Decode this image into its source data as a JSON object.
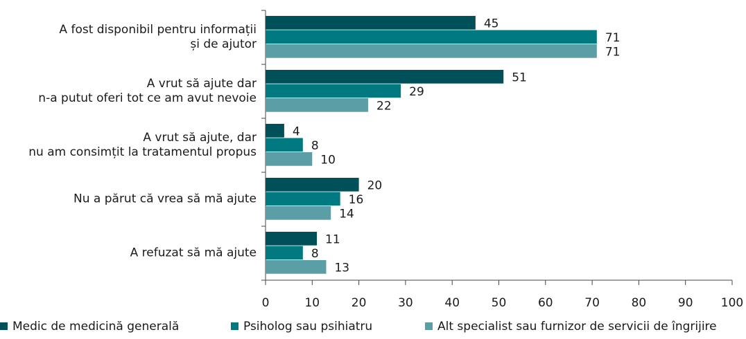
{
  "chart_data": {
    "type": "bar",
    "orientation": "horizontal",
    "categories": [
      "A fost disponibil pentru informații\nși de ajutor",
      "A vrut să ajute dar\nn-a putut oferi tot ce am avut nevoie",
      "A vrut să ajute, dar\nnu am consimțit la tratamentul propus",
      "Nu a părut că vrea să mă ajute",
      "A refuzat să mă ajute"
    ],
    "series": [
      {
        "name": "Medic de medicină generală",
        "color": "#00505a",
        "values": [
          45,
          51,
          4,
          20,
          11
        ]
      },
      {
        "name": "Psiholog sau psihiatru",
        "color": "#007a80",
        "values": [
          71,
          29,
          8,
          16,
          8
        ]
      },
      {
        "name": "Alt specialist sau furnizor de servicii de îngrijire",
        "color": "#5b9ea6",
        "values": [
          71,
          22,
          10,
          14,
          13
        ]
      }
    ],
    "xlim": [
      0,
      100
    ],
    "xticks": [
      0,
      10,
      20,
      30,
      40,
      50,
      60,
      70,
      80,
      90,
      100
    ]
  }
}
